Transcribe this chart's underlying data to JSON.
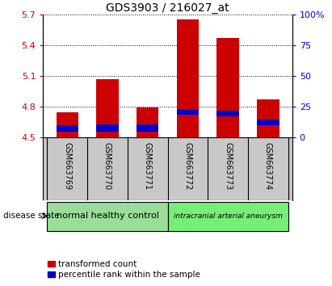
{
  "title": "GDS3903 / 216027_at",
  "samples": [
    "GSM663769",
    "GSM663770",
    "GSM663771",
    "GSM663772",
    "GSM663773",
    "GSM663774"
  ],
  "red_top": [
    4.74,
    5.07,
    4.79,
    5.65,
    5.47,
    4.87
  ],
  "blue_bottom": [
    4.555,
    4.558,
    4.557,
    4.718,
    4.705,
    4.618
  ],
  "blue_top": [
    4.615,
    4.628,
    4.622,
    4.775,
    4.76,
    4.675
  ],
  "bar_base": 4.5,
  "ylim_left": [
    4.5,
    5.7
  ],
  "yticks_left": [
    4.5,
    4.8,
    5.1,
    5.4,
    5.7
  ],
  "ylim_right": [
    0,
    100
  ],
  "yticks_right": [
    0,
    25,
    50,
    75,
    100
  ],
  "ytick_labels_right": [
    "0",
    "25",
    "50",
    "75",
    "100%"
  ],
  "red_color": "#cc0000",
  "blue_color": "#0000cc",
  "bar_width": 0.55,
  "group1_label": "normal healthy control",
  "group2_label": "intracranial arterial aneurysm",
  "group1_color": "#99dd99",
  "group2_color": "#77ee77",
  "disease_state_label": "disease state",
  "legend_red": "transformed count",
  "legend_blue": "percentile rank within the sample",
  "tick_color_left": "#cc0000",
  "tick_color_right": "#0000cc",
  "xlabel_area_color": "#c8c8c8",
  "title_fontsize": 10,
  "axis_fontsize": 8,
  "sample_fontsize": 7,
  "group_fontsize_1": 8,
  "group_fontsize_2": 6.5,
  "legend_fontsize": 7.5
}
